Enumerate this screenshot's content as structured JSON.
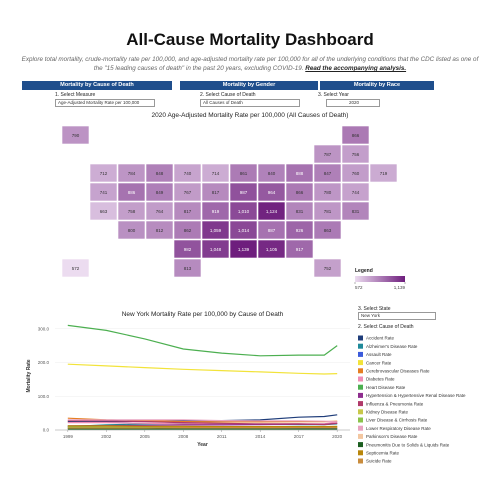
{
  "header": {
    "title": "All-Cause Mortality Dashboard",
    "subtitle": "Explore total mortality, crude-mortality rate per 100,000, and age-adjusted mortality rate per 100,000 for all of the underlying conditions that the CDC listed as one of the \"15 leading causes of death\" in the past 20 years, excluding COVID-19.",
    "link": "Read the accompanying analysis."
  },
  "tabs": [
    "Mortality by Cause of Death",
    "Mortality by Gender",
    "Mortality by Race"
  ],
  "filters": {
    "measure_label": "1. Select Measure",
    "measure": "Age-Adjusted Mortality Rate per 100,000",
    "cause_label": "2. Select Cause of Death",
    "cause": "All Causes of Death",
    "year_label": "3. Select Year",
    "year": "2020",
    "state_label": "3. Select State",
    "state": "New York",
    "cause2_label": "2. Select Cause of Death"
  },
  "map": {
    "title": "2020 Age-Adjusted Mortality Rate per 100,000 (All Causes of Death)",
    "values": [
      790,
      866,
      787,
      756,
      712,
      784,
      848,
      740,
      714,
      861,
      840,
      888,
      847,
      760,
      719,
      741,
      886,
      849,
      767,
      817,
      987,
      964,
      866,
      780,
      744,
      663,
      758,
      764,
      817,
      919,
      1010,
      1124,
      831,
      781,
      831,
      800,
      812,
      862,
      1059,
      1014,
      887,
      926,
      863,
      982,
      1048,
      1139,
      1105,
      917,
      572,
      813,
      752
    ],
    "value_labels": [
      "790",
      "866",
      "787",
      "756",
      "712",
      "784",
      "848",
      "740",
      "714",
      "861",
      "840",
      "888",
      "847",
      "760",
      "719",
      "741",
      "886",
      "849",
      "767",
      "817",
      "987",
      "964",
      "866",
      "780",
      "744",
      "663",
      "758",
      "764",
      "817",
      "919",
      "1,010",
      "1,124",
      "831",
      "781",
      "831",
      "800",
      "812",
      "862",
      "1,059",
      "1,014",
      "887",
      "926",
      "863",
      "982",
      "1,048",
      "1,139",
      "1,105",
      "917",
      "572",
      "813",
      "752"
    ],
    "legend_title": "Legend",
    "legend_range": [
      {
        "value": 572,
        "label": "572"
      },
      {
        "value": 1139,
        "label": "1,139"
      }
    ]
  },
  "chart_data": {
    "type": "line",
    "title": "New York Mortality Rate per 100,000 by Cause of Death",
    "x_label": "Year",
    "y_label": "Mortality Rate",
    "x": [
      1999,
      2002,
      2005,
      2008,
      2011,
      2014,
      2017,
      2019,
      2020
    ],
    "xlim": [
      1998,
      2021
    ],
    "xticks": [
      1999,
      2002,
      2005,
      2008,
      2011,
      2014,
      2017,
      2020
    ],
    "ylim": [
      0,
      320
    ],
    "yticks": [
      {
        "value": 0,
        "label": "0.0"
      },
      {
        "value": 100,
        "label": "100.0"
      },
      {
        "value": 200,
        "label": "200.0"
      },
      {
        "value": 300,
        "label": "300.0"
      }
    ],
    "series": [
      {
        "name": "Accident Rate",
        "color": "#1f3d7a",
        "values": [
          25,
          24,
          26,
          27,
          28,
          30,
          38,
          40,
          45
        ]
      },
      {
        "name": "Alzheimer's Disease Rate",
        "color": "#1f8a9a",
        "values": [
          10,
          15,
          18,
          20,
          18,
          17,
          16,
          16,
          18
        ]
      },
      {
        "name": "Assault Rate",
        "color": "#3b5bdb",
        "values": [
          5,
          5,
          5,
          4,
          4,
          4,
          4,
          4,
          4
        ]
      },
      {
        "name": "Cancer Rate",
        "color": "#f2e33a",
        "values": [
          195,
          190,
          185,
          180,
          176,
          172,
          168,
          166,
          167
        ]
      },
      {
        "name": "Cerebrovascular Diseases Rate",
        "color": "#e67e22",
        "values": [
          35,
          30,
          28,
          25,
          24,
          24,
          25,
          25,
          26
        ]
      },
      {
        "name": "Diabetes Rate",
        "color": "#f08cb5",
        "values": [
          22,
          22,
          20,
          18,
          17,
          17,
          18,
          18,
          24
        ]
      },
      {
        "name": "Heart Disease Rate",
        "color": "#4caf50",
        "values": [
          310,
          295,
          270,
          240,
          228,
          220,
          222,
          222,
          250
        ]
      },
      {
        "name": "Hypertension & Hypertensive Renal Disease Rate",
        "color": "#8e2d8e",
        "values": [
          12,
          13,
          14,
          15,
          15,
          16,
          17,
          17,
          20
        ]
      },
      {
        "name": "Influenza & Pneumonia Rate",
        "color": "#b03a6a",
        "values": [
          28,
          27,
          25,
          22,
          20,
          18,
          18,
          16,
          20
        ]
      },
      {
        "name": "Kidney Disease Rate",
        "color": "#c8c84a",
        "values": [
          8,
          9,
          10,
          10,
          10,
          9,
          9,
          9,
          10
        ]
      },
      {
        "name": "Liver Disease & Cirrhosis Rate",
        "color": "#8bc34a",
        "values": [
          9,
          8,
          8,
          7,
          7,
          7,
          8,
          8,
          9
        ]
      },
      {
        "name": "Lower Respiratory Disease Rate",
        "color": "#e8a3c0",
        "values": [
          30,
          30,
          30,
          30,
          28,
          27,
          27,
          26,
          24
        ]
      },
      {
        "name": "Parkinson's Disease Rate",
        "color": "#f3c6a0",
        "values": [
          4,
          5,
          5,
          6,
          6,
          6,
          7,
          7,
          7
        ]
      },
      {
        "name": "Pneumonitis Due to Solids & Liquids Rate",
        "color": "#1b5e20",
        "values": [
          3,
          3,
          3,
          3,
          3,
          3,
          3,
          3,
          3
        ]
      },
      {
        "name": "Septicemia Rate",
        "color": "#b8860b",
        "values": [
          12,
          12,
          11,
          11,
          10,
          10,
          10,
          10,
          11
        ]
      },
      {
        "name": "Suicide Rate",
        "color": "#c98c3c",
        "values": [
          6,
          6,
          6,
          7,
          7,
          7,
          7,
          7,
          7
        ]
      }
    ]
  }
}
